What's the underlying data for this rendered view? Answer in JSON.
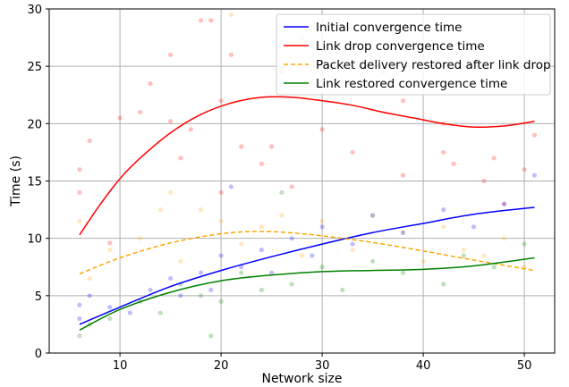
{
  "chart_data": {
    "type": "line",
    "title": "",
    "xlabel": "Network size",
    "ylabel": "Time (s)",
    "xlim": [
      3,
      53
    ],
    "ylim": [
      0,
      30
    ],
    "xticks": [
      10,
      20,
      30,
      40,
      50
    ],
    "yticks": [
      0,
      5,
      10,
      15,
      20,
      25,
      30
    ],
    "grid": true,
    "legend_position": "top-right",
    "series": [
      {
        "name": "Initial convergence time",
        "color": "#0000ff",
        "style": "solid",
        "x": [
          6,
          10,
          15,
          20,
          25,
          30,
          35,
          40,
          45,
          51
        ],
        "y": [
          2.5,
          4.0,
          5.8,
          7.2,
          8.4,
          9.5,
          10.5,
          11.3,
          12.1,
          12.7
        ]
      },
      {
        "name": "Link drop convergence time",
        "color": "#ff0000",
        "style": "solid",
        "x": [
          6,
          8,
          10,
          12,
          15,
          18,
          21,
          24,
          27,
          30,
          33,
          36,
          39,
          42,
          45,
          48,
          51
        ],
        "y": [
          10.3,
          12.9,
          15.2,
          17.0,
          19.2,
          20.8,
          21.8,
          22.3,
          22.3,
          22.0,
          21.6,
          21.0,
          20.5,
          20.0,
          19.7,
          19.8,
          20.2
        ]
      },
      {
        "name": "Packet delivery restored after link drop",
        "color": "#ffa500",
        "style": "dashed",
        "x": [
          6,
          10,
          15,
          20,
          24,
          28,
          32,
          36,
          40,
          45,
          51
        ],
        "y": [
          6.9,
          8.3,
          9.6,
          10.4,
          10.6,
          10.4,
          10.0,
          9.5,
          8.9,
          8.1,
          7.2
        ]
      },
      {
        "name": "Link restored convergence time",
        "color": "#008000",
        "style": "solid",
        "x": [
          6,
          10,
          15,
          20,
          25,
          30,
          35,
          40,
          45,
          51
        ],
        "y": [
          2.0,
          3.8,
          5.3,
          6.3,
          6.8,
          7.1,
          7.2,
          7.3,
          7.6,
          8.3
        ]
      }
    ],
    "scatter_points": [
      {
        "series": 1,
        "x": 6,
        "y": 14.0
      },
      {
        "series": 1,
        "x": 6,
        "y": 16.0
      },
      {
        "series": 1,
        "x": 7,
        "y": 18.5
      },
      {
        "series": 1,
        "x": 9,
        "y": 9.6
      },
      {
        "series": 1,
        "x": 10,
        "y": 20.5
      },
      {
        "series": 1,
        "x": 12,
        "y": 21.0
      },
      {
        "series": 1,
        "x": 13,
        "y": 23.5
      },
      {
        "series": 1,
        "x": 15,
        "y": 26.0
      },
      {
        "series": 1,
        "x": 15,
        "y": 20.2
      },
      {
        "series": 1,
        "x": 16,
        "y": 17.0
      },
      {
        "series": 1,
        "x": 17,
        "y": 19.5
      },
      {
        "series": 1,
        "x": 18,
        "y": 29.0
      },
      {
        "series": 1,
        "x": 19,
        "y": 29.0
      },
      {
        "series": 1,
        "x": 20,
        "y": 14.0
      },
      {
        "series": 1,
        "x": 20,
        "y": 22.0
      },
      {
        "series": 1,
        "x": 21,
        "y": 26.0
      },
      {
        "series": 1,
        "x": 22,
        "y": 18.0
      },
      {
        "series": 1,
        "x": 24,
        "y": 16.5
      },
      {
        "series": 1,
        "x": 25,
        "y": 18.0
      },
      {
        "series": 1,
        "x": 26,
        "y": 24.5
      },
      {
        "series": 1,
        "x": 27,
        "y": 14.5
      },
      {
        "series": 1,
        "x": 28,
        "y": 27.5
      },
      {
        "series": 1,
        "x": 30,
        "y": 19.5
      },
      {
        "series": 1,
        "x": 32,
        "y": 25.5
      },
      {
        "series": 1,
        "x": 33,
        "y": 17.5
      },
      {
        "series": 1,
        "x": 36,
        "y": 24.5
      },
      {
        "series": 1,
        "x": 38,
        "y": 22.0
      },
      {
        "series": 1,
        "x": 38,
        "y": 15.5
      },
      {
        "series": 1,
        "x": 42,
        "y": 17.5
      },
      {
        "series": 1,
        "x": 42,
        "y": 20.0
      },
      {
        "series": 1,
        "x": 43,
        "y": 16.5
      },
      {
        "series": 1,
        "x": 46,
        "y": 15.0
      },
      {
        "series": 1,
        "x": 47,
        "y": 17.0
      },
      {
        "series": 1,
        "x": 48,
        "y": 13.0
      },
      {
        "series": 1,
        "x": 50,
        "y": 16.0
      },
      {
        "series": 1,
        "x": 51,
        "y": 19.0
      },
      {
        "series": 2,
        "x": 6,
        "y": 11.5
      },
      {
        "series": 2,
        "x": 7,
        "y": 6.5
      },
      {
        "series": 2,
        "x": 9,
        "y": 9.0
      },
      {
        "series": 2,
        "x": 12,
        "y": 10.0
      },
      {
        "series": 2,
        "x": 14,
        "y": 12.5
      },
      {
        "series": 2,
        "x": 15,
        "y": 14.0
      },
      {
        "series": 2,
        "x": 16,
        "y": 8.0
      },
      {
        "series": 2,
        "x": 18,
        "y": 12.5
      },
      {
        "series": 2,
        "x": 20,
        "y": 11.5
      },
      {
        "series": 2,
        "x": 21,
        "y": 29.5
      },
      {
        "series": 2,
        "x": 22,
        "y": 9.5
      },
      {
        "series": 2,
        "x": 24,
        "y": 11.0
      },
      {
        "series": 2,
        "x": 26,
        "y": 12.0
      },
      {
        "series": 2,
        "x": 28,
        "y": 8.5
      },
      {
        "series": 2,
        "x": 30,
        "y": 11.5
      },
      {
        "series": 2,
        "x": 33,
        "y": 9.0
      },
      {
        "series": 2,
        "x": 35,
        "y": 12.0
      },
      {
        "series": 2,
        "x": 38,
        "y": 10.5
      },
      {
        "series": 2,
        "x": 40,
        "y": 8.0
      },
      {
        "series": 2,
        "x": 42,
        "y": 11.0
      },
      {
        "series": 2,
        "x": 44,
        "y": 9.0
      },
      {
        "series": 2,
        "x": 46,
        "y": 8.5
      },
      {
        "series": 2,
        "x": 48,
        "y": 10.0
      },
      {
        "series": 2,
        "x": 50,
        "y": 7.5
      },
      {
        "series": 0,
        "x": 6,
        "y": 3.0
      },
      {
        "series": 0,
        "x": 6,
        "y": 4.2
      },
      {
        "series": 0,
        "x": 7,
        "y": 5.0
      },
      {
        "series": 0,
        "x": 9,
        "y": 4.0
      },
      {
        "series": 0,
        "x": 11,
        "y": 3.5
      },
      {
        "series": 0,
        "x": 13,
        "y": 5.5
      },
      {
        "series": 0,
        "x": 15,
        "y": 6.5
      },
      {
        "series": 0,
        "x": 16,
        "y": 5.0
      },
      {
        "series": 0,
        "x": 18,
        "y": 7.0
      },
      {
        "series": 0,
        "x": 19,
        "y": 5.5
      },
      {
        "series": 0,
        "x": 20,
        "y": 8.5
      },
      {
        "series": 0,
        "x": 21,
        "y": 14.5
      },
      {
        "series": 0,
        "x": 22,
        "y": 7.5
      },
      {
        "series": 0,
        "x": 24,
        "y": 9.0
      },
      {
        "series": 0,
        "x": 25,
        "y": 7.0
      },
      {
        "series": 0,
        "x": 27,
        "y": 10.0
      },
      {
        "series": 0,
        "x": 29,
        "y": 8.5
      },
      {
        "series": 0,
        "x": 30,
        "y": 11.0
      },
      {
        "series": 0,
        "x": 33,
        "y": 9.5
      },
      {
        "series": 0,
        "x": 35,
        "y": 12.0
      },
      {
        "series": 0,
        "x": 38,
        "y": 10.5
      },
      {
        "series": 0,
        "x": 42,
        "y": 12.5
      },
      {
        "series": 0,
        "x": 45,
        "y": 11.0
      },
      {
        "series": 0,
        "x": 48,
        "y": 13.0
      },
      {
        "series": 0,
        "x": 51,
        "y": 15.5
      },
      {
        "series": 3,
        "x": 6,
        "y": 1.5
      },
      {
        "series": 3,
        "x": 7,
        "y": 2.5
      },
      {
        "series": 3,
        "x": 9,
        "y": 3.0
      },
      {
        "series": 3,
        "x": 12,
        "y": 4.5
      },
      {
        "series": 3,
        "x": 14,
        "y": 3.5
      },
      {
        "series": 3,
        "x": 16,
        "y": 6.0
      },
      {
        "series": 3,
        "x": 18,
        "y": 5.0
      },
      {
        "series": 3,
        "x": 19,
        "y": 1.5
      },
      {
        "series": 3,
        "x": 20,
        "y": 4.5
      },
      {
        "series": 3,
        "x": 22,
        "y": 7.0
      },
      {
        "series": 3,
        "x": 24,
        "y": 5.5
      },
      {
        "series": 3,
        "x": 26,
        "y": 14.0
      },
      {
        "series": 3,
        "x": 27,
        "y": 6.0
      },
      {
        "series": 3,
        "x": 30,
        "y": 7.5
      },
      {
        "series": 3,
        "x": 32,
        "y": 5.5
      },
      {
        "series": 3,
        "x": 35,
        "y": 8.0
      },
      {
        "series": 3,
        "x": 38,
        "y": 7.0
      },
      {
        "series": 3,
        "x": 42,
        "y": 6.0
      },
      {
        "series": 3,
        "x": 44,
        "y": 8.5
      },
      {
        "series": 3,
        "x": 47,
        "y": 7.5
      },
      {
        "series": 3,
        "x": 50,
        "y": 9.5
      }
    ]
  }
}
